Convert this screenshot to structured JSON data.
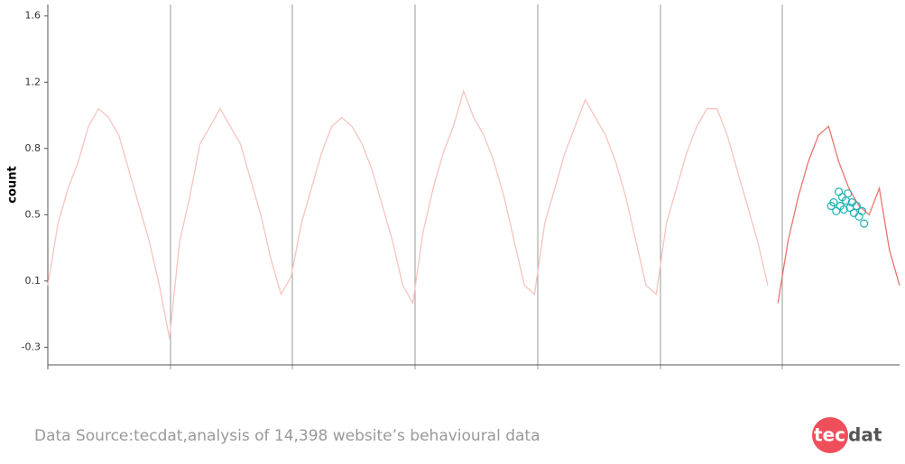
{
  "chart_data": {
    "type": "line",
    "y_label": "count",
    "xlim": [
      0,
      168
    ],
    "ylim": [
      -0.4,
      1.64
    ],
    "yticks": [
      {
        "value": -0.3,
        "label": "-0.3"
      },
      {
        "value": 0.075,
        "label": "0.1"
      },
      {
        "value": 0.45,
        "label": "0.5"
      },
      {
        "value": 0.825,
        "label": "0.8"
      },
      {
        "value": 1.2,
        "label": "1.2"
      },
      {
        "value": 1.575,
        "label": "1.6"
      }
    ],
    "series": [
      {
        "color": "#f7c4bf",
        "style": "line",
        "x": [
          0,
          2,
          4,
          6,
          8,
          10,
          12,
          14,
          16,
          18,
          20,
          22,
          24,
          26,
          28,
          30,
          32,
          34,
          36,
          38,
          40,
          42,
          44,
          46,
          48,
          50,
          52,
          54,
          56,
          58,
          60,
          62,
          64,
          66,
          68,
          70,
          72,
          74,
          76,
          78,
          80,
          82,
          84,
          86,
          88,
          90,
          92,
          94,
          96,
          98,
          100,
          102,
          104,
          106,
          108,
          110,
          112,
          114,
          116,
          118,
          120,
          122,
          124,
          126,
          128,
          130,
          132,
          134,
          136,
          138,
          140,
          142
        ],
        "values": [
          0.05,
          0.4,
          0.6,
          0.75,
          0.95,
          1.05,
          1.0,
          0.9,
          0.7,
          0.5,
          0.3,
          0.05,
          -0.25,
          0.3,
          0.55,
          0.85,
          0.95,
          1.05,
          0.95,
          0.85,
          0.65,
          0.45,
          0.2,
          0.0,
          0.1,
          0.4,
          0.6,
          0.8,
          0.95,
          1.0,
          0.95,
          0.85,
          0.7,
          0.5,
          0.3,
          0.05,
          -0.05,
          0.35,
          0.6,
          0.8,
          0.95,
          1.15,
          1.0,
          0.9,
          0.75,
          0.55,
          0.3,
          0.05,
          0.0,
          0.4,
          0.6,
          0.8,
          0.95,
          1.1,
          1.0,
          0.9,
          0.75,
          0.55,
          0.3,
          0.05,
          0.0,
          0.4,
          0.6,
          0.8,
          0.95,
          1.05,
          1.05,
          0.9,
          0.7,
          0.5,
          0.3,
          0.05
        ]
      },
      {
        "color": "#e8756d",
        "style": "line",
        "x": [
          144,
          146,
          148,
          150,
          152,
          154,
          156,
          158,
          160,
          162,
          164,
          166,
          168
        ],
        "values": [
          -0.05,
          0.3,
          0.55,
          0.75,
          0.9,
          0.95,
          0.75,
          0.6,
          0.5,
          0.45,
          0.6,
          0.25,
          0.05
        ]
      },
      {
        "color": "#1fb3b3",
        "style": "points",
        "x": [
          154.5,
          155,
          155.5,
          156,
          156.3,
          156.7,
          157,
          157.4,
          157.8,
          158.2,
          158.6,
          159,
          159.5,
          160,
          160.6,
          161
        ],
        "values": [
          0.5,
          0.52,
          0.47,
          0.58,
          0.5,
          0.55,
          0.48,
          0.53,
          0.57,
          0.49,
          0.52,
          0.46,
          0.5,
          0.44,
          0.47,
          0.4
        ]
      }
    ]
  },
  "footer": {
    "source": "Data Source:tecdat,analysis of 14,398 website’s behavioural data",
    "logo_a": "tec",
    "logo_b": "dat"
  }
}
